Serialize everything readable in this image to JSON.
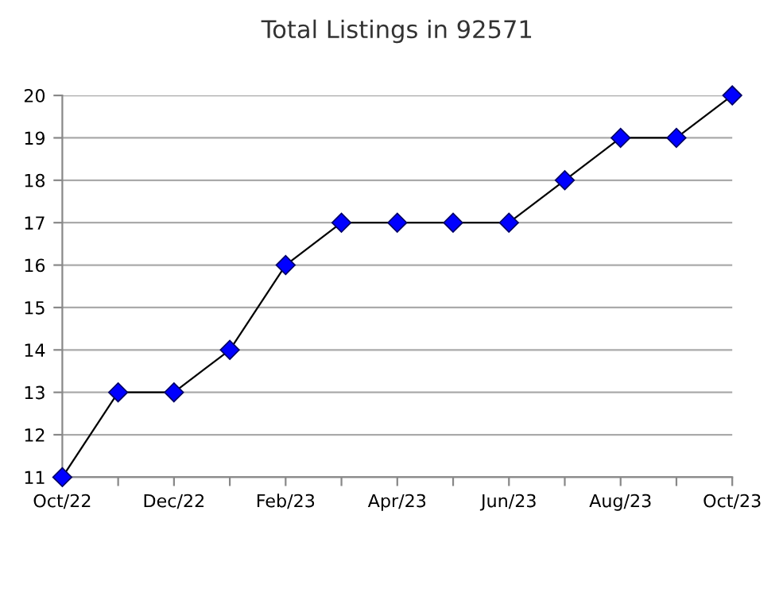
{
  "chart_data": {
    "type": "line",
    "title": "Total Listings in 92571",
    "categories": [
      "Oct/22",
      null,
      "Dec/22",
      null,
      "Feb/23",
      null,
      "Apr/23",
      null,
      "Jun/23",
      null,
      "Aug/23",
      null,
      "Oct/23"
    ],
    "series": [
      {
        "color": "#0000ff",
        "values": [
          11,
          13,
          13,
          14,
          16,
          17,
          17,
          17,
          17,
          18,
          19,
          19,
          20
        ]
      }
    ],
    "ylim": [
      11,
      20
    ],
    "yticks": [
      11,
      12,
      13,
      14,
      15,
      16,
      17,
      18,
      19,
      20
    ],
    "grid": "y",
    "marker": "diamond",
    "line_style": "solid"
  }
}
